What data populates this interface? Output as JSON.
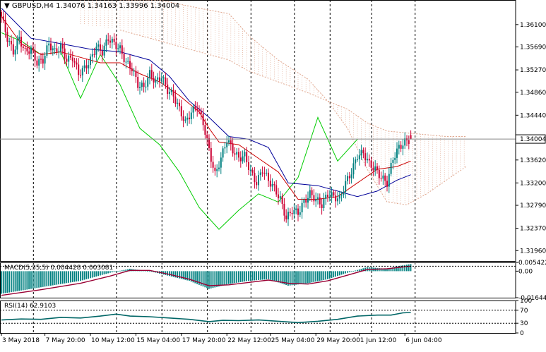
{
  "header": {
    "symbol": "GBPUSD,H4",
    "ohlc": "1.34076 1.34163 1.33996 1.34004"
  },
  "price_axis": {
    "ticks": [
      "1.36100",
      "1.35690",
      "1.35270",
      "1.34860",
      "1.34440",
      "1.33620",
      "1.33200",
      "1.32790",
      "1.32370",
      "1.31960"
    ],
    "current_price": "1.34004"
  },
  "macd_panel": {
    "label": "MACD(5,35,5) 0.004428 0.003081",
    "ticks": [
      "0.005422",
      "0.00",
      "-0.016441"
    ]
  },
  "rsi_panel": {
    "label": "RSI(14) 62.9103",
    "ticks": [
      "100",
      "70",
      "30",
      "0"
    ]
  },
  "time_axis": {
    "labels": [
      "3 May 2018",
      "7 May 20:00",
      "10 May 12:00",
      "15 May 04:00",
      "17 May 20:00",
      "22 May 12:00",
      "25 May 04:00",
      "29 May 20:00",
      "1 Jun 12:00",
      "6 Jun 04:00"
    ]
  },
  "colors": {
    "bull": "#008080",
    "bear": "#cc0033",
    "tenkan": "#cc0000",
    "kijun": "#000099",
    "chikou": "#00cc00",
    "kumo": "#e0a890",
    "macd_hist": "#008080",
    "macd_signal": "#990033",
    "rsi": "#006666"
  },
  "chart_data": {
    "type": "candlestick",
    "symbol": "GBPUSD",
    "timeframe": "H4",
    "last": {
      "open": 1.34076,
      "high": 1.34163,
      "low": 1.33996,
      "close": 1.34004
    },
    "ylim": [
      1.3177,
      1.3655
    ],
    "close_path": [
      [
        0,
        1.3625
      ],
      [
        3,
        1.3585
      ],
      [
        6,
        1.356
      ],
      [
        9,
        1.3585
      ],
      [
        12,
        1.356
      ],
      [
        15,
        1.3565
      ],
      [
        18,
        1.354
      ],
      [
        21,
        1.3545
      ],
      [
        24,
        1.3575
      ],
      [
        27,
        1.356
      ],
      [
        30,
        1.357
      ],
      [
        33,
        1.3545
      ],
      [
        36,
        1.355
      ],
      [
        39,
        1.352
      ],
      [
        42,
        1.353
      ],
      [
        45,
        1.3545
      ],
      [
        48,
        1.357
      ],
      [
        51,
        1.356
      ],
      [
        54,
        1.3585
      ],
      [
        57,
        1.3575
      ],
      [
        60,
        1.3565
      ],
      [
        63,
        1.354
      ],
      [
        66,
        1.353
      ],
      [
        69,
        1.35
      ],
      [
        72,
        1.3495
      ],
      [
        75,
        1.352
      ],
      [
        78,
        1.3505
      ],
      [
        81,
        1.3515
      ],
      [
        84,
        1.349
      ],
      [
        87,
        1.348
      ],
      [
        90,
        1.3455
      ],
      [
        93,
        1.343
      ],
      [
        96,
        1.345
      ],
      [
        99,
        1.346
      ],
      [
        102,
        1.343
      ],
      [
        105,
        1.338
      ],
      [
        108,
        1.3335
      ],
      [
        111,
        1.3365
      ],
      [
        114,
        1.34
      ],
      [
        117,
        1.338
      ],
      [
        120,
        1.3365
      ],
      [
        123,
        1.337
      ],
      [
        126,
        1.334
      ],
      [
        129,
        1.332
      ],
      [
        132,
        1.3345
      ],
      [
        135,
        1.3325
      ],
      [
        138,
        1.331
      ],
      [
        141,
        1.329
      ],
      [
        144,
        1.3255
      ],
      [
        147,
        1.327
      ],
      [
        150,
        1.3265
      ],
      [
        153,
        1.3285
      ],
      [
        156,
        1.33
      ],
      [
        159,
        1.329
      ],
      [
        162,
        1.328
      ],
      [
        165,
        1.33
      ],
      [
        168,
        1.3295
      ],
      [
        171,
        1.329
      ],
      [
        174,
        1.332
      ],
      [
        177,
        1.334
      ],
      [
        180,
        1.337
      ],
      [
        183,
        1.3375
      ],
      [
        186,
        1.3355
      ],
      [
        189,
        1.3345
      ],
      [
        192,
        1.333
      ],
      [
        195,
        1.332
      ],
      [
        198,
        1.3365
      ],
      [
        201,
        1.3385
      ],
      [
        204,
        1.3395
      ],
      [
        207,
        1.34
      ]
    ],
    "ichimoku": {
      "tenkan": [
        [
          0,
          1.3625
        ],
        [
          10,
          1.3575
        ],
        [
          20,
          1.3555
        ],
        [
          30,
          1.356
        ],
        [
          40,
          1.355
        ],
        [
          50,
          1.354
        ],
        [
          60,
          1.354
        ],
        [
          70,
          1.352
        ],
        [
          80,
          1.3505
        ],
        [
          90,
          1.348
        ],
        [
          100,
          1.345
        ],
        [
          105,
          1.342
        ],
        [
          110,
          1.3395
        ],
        [
          120,
          1.339
        ],
        [
          130,
          1.3365
        ],
        [
          140,
          1.334
        ],
        [
          150,
          1.329
        ],
        [
          160,
          1.329
        ],
        [
          170,
          1.3295
        ],
        [
          180,
          1.332
        ],
        [
          190,
          1.3345
        ],
        [
          200,
          1.335
        ],
        [
          207,
          1.336
        ]
      ],
      "kijun": [
        [
          0,
          1.364
        ],
        [
          15,
          1.3585
        ],
        [
          30,
          1.3575
        ],
        [
          45,
          1.3565
        ],
        [
          60,
          1.356
        ],
        [
          75,
          1.3545
        ],
        [
          85,
          1.3515
        ],
        [
          95,
          1.347
        ],
        [
          105,
          1.344
        ],
        [
          115,
          1.3405
        ],
        [
          125,
          1.34
        ],
        [
          135,
          1.3385
        ],
        [
          145,
          1.332
        ],
        [
          160,
          1.3315
        ],
        [
          170,
          1.3305
        ],
        [
          180,
          1.3295
        ],
        [
          190,
          1.3305
        ],
        [
          200,
          1.3325
        ],
        [
          207,
          1.3335
        ]
      ],
      "chikou": [
        [
          0,
          1.3595
        ],
        [
          10,
          1.358
        ],
        [
          20,
          1.3555
        ],
        [
          30,
          1.356
        ],
        [
          40,
          1.3475
        ],
        [
          50,
          1.3555
        ],
        [
          60,
          1.35
        ],
        [
          70,
          1.342
        ],
        [
          80,
          1.339
        ],
        [
          90,
          1.334
        ],
        [
          100,
          1.3275
        ],
        [
          110,
          1.3235
        ],
        [
          120,
          1.327
        ],
        [
          130,
          1.33
        ],
        [
          140,
          1.3285
        ],
        [
          150,
          1.333
        ],
        [
          160,
          1.344
        ],
        [
          170,
          1.336
        ],
        [
          180,
          1.34
        ]
      ],
      "kumo_top": [
        [
          0,
          1.3655
        ],
        [
          30,
          1.3655
        ],
        [
          60,
          1.3655
        ],
        [
          80,
          1.3655
        ],
        [
          100,
          1.364
        ],
        [
          115,
          1.363
        ],
        [
          125,
          1.359
        ],
        [
          140,
          1.3545
        ],
        [
          155,
          1.351
        ],
        [
          165,
          1.347
        ],
        [
          175,
          1.3455
        ],
        [
          185,
          1.343
        ],
        [
          195,
          1.3415
        ],
        [
          210,
          1.341
        ],
        [
          225,
          1.3405
        ],
        [
          235,
          1.3405
        ]
      ],
      "kumo_bottom": [
        [
          0,
          1.363
        ],
        [
          30,
          1.3615
        ],
        [
          60,
          1.36
        ],
        [
          80,
          1.358
        ],
        [
          100,
          1.356
        ],
        [
          115,
          1.3545
        ],
        [
          125,
          1.3525
        ],
        [
          140,
          1.3505
        ],
        [
          155,
          1.3485
        ],
        [
          165,
          1.347
        ],
        [
          175,
          1.342
        ],
        [
          185,
          1.3345
        ],
        [
          195,
          1.3285
        ],
        [
          205,
          1.328
        ],
        [
          215,
          1.33
        ],
        [
          225,
          1.3325
        ],
        [
          235,
          1.335
        ]
      ]
    },
    "macd": {
      "ylim": [
        -0.016441,
        0.005422
      ],
      "hist_path": [
        [
          0,
          -0.014
        ],
        [
          20,
          -0.01
        ],
        [
          40,
          -0.006
        ],
        [
          55,
          -0.001
        ],
        [
          65,
          0.0015
        ],
        [
          75,
          0.0
        ],
        [
          85,
          -0.003
        ],
        [
          95,
          -0.006
        ],
        [
          105,
          -0.011
        ],
        [
          115,
          -0.008
        ],
        [
          125,
          -0.006
        ],
        [
          135,
          -0.005
        ],
        [
          145,
          -0.009
        ],
        [
          155,
          -0.0075
        ],
        [
          165,
          -0.005
        ],
        [
          175,
          -0.001
        ],
        [
          185,
          0.0025
        ],
        [
          195,
          0.0015
        ],
        [
          200,
          0.003
        ],
        [
          207,
          0.0044
        ]
      ],
      "signal_path": [
        [
          0,
          -0.015
        ],
        [
          20,
          -0.0115
        ],
        [
          40,
          -0.0075
        ],
        [
          55,
          -0.003
        ],
        [
          65,
          0.0005
        ],
        [
          75,
          0.0005
        ],
        [
          85,
          -0.002
        ],
        [
          95,
          -0.005
        ],
        [
          105,
          -0.009
        ],
        [
          115,
          -0.0085
        ],
        [
          125,
          -0.007
        ],
        [
          135,
          -0.0055
        ],
        [
          145,
          -0.0075
        ],
        [
          155,
          -0.008
        ],
        [
          165,
          -0.006
        ],
        [
          175,
          -0.0025
        ],
        [
          185,
          0.001
        ],
        [
          195,
          0.0015
        ],
        [
          200,
          0.0022
        ],
        [
          207,
          0.0031
        ]
      ]
    },
    "rsi": {
      "ylim": [
        0,
        100
      ],
      "levels": [
        30,
        70
      ],
      "path": [
        [
          0,
          40
        ],
        [
          10,
          43
        ],
        [
          20,
          42
        ],
        [
          30,
          48
        ],
        [
          40,
          46
        ],
        [
          50,
          52
        ],
        [
          58,
          58
        ],
        [
          65,
          52
        ],
        [
          75,
          50
        ],
        [
          85,
          46
        ],
        [
          95,
          42
        ],
        [
          105,
          35
        ],
        [
          112,
          39
        ],
        [
          120,
          38
        ],
        [
          130,
          40
        ],
        [
          140,
          36
        ],
        [
          150,
          32
        ],
        [
          160,
          36
        ],
        [
          170,
          42
        ],
        [
          180,
          52
        ],
        [
          190,
          55
        ],
        [
          197,
          55
        ],
        [
          203,
          62
        ],
        [
          207,
          63
        ]
      ]
    }
  }
}
